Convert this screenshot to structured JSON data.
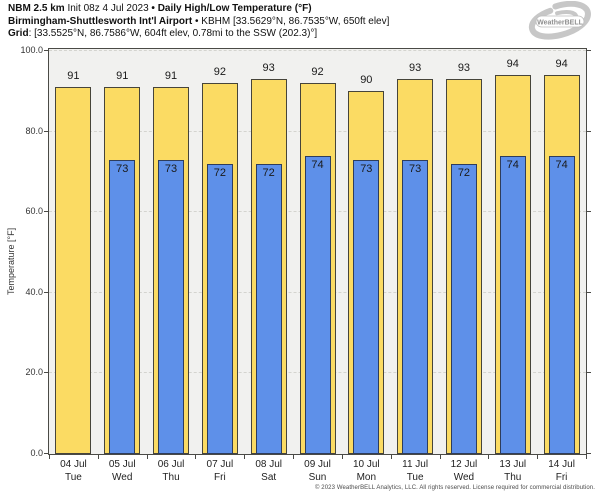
{
  "header": {
    "line1_model": "NBM 2.5 km",
    "line1_init": " Init 08z 4 Jul 2023 ",
    "line1_title": "• Daily High/Low Temperature (°F)",
    "line2_station": "Birmingham-Shuttlesworth Int'l Airport",
    "line2_meta": " • KBHM [33.5629°N, 86.7535°W, 650ft elev]",
    "line3_label": "Grid",
    "line3_meta": ": [33.5525°N, 86.7586°W, 604ft elev, 0.78mi to the SSW (202.3)°]"
  },
  "logo": {
    "text": "WeatherBELL"
  },
  "footer": {
    "copyright": "© 2023 WeatherBELL Analytics, LLC. All rights reserved. License required for commercial distribution."
  },
  "colors": {
    "high_fill": "#fbdb63",
    "high_border": "#46443a",
    "low_fill": "#5e90e9",
    "low_border": "#2e3d5c",
    "plot_bg": "#f1f1ef",
    "grid": "#d4d4cf",
    "axis": "#4a4a46"
  },
  "chart_data": {
    "type": "bar",
    "title": "Daily High/Low Temperature (°F)",
    "xlabel": "",
    "ylabel": "Temperature [°F]",
    "ylim": [
      0,
      100
    ],
    "yticks": [
      0,
      20,
      40,
      60,
      80,
      100
    ],
    "ytick_labels": [
      "0.0",
      "20.0",
      "40.0",
      "60.0",
      "80.0",
      "100.0"
    ],
    "grid": "horizontal-dashed",
    "legend": "none",
    "categories": [
      {
        "date": "04 Jul",
        "day": "Tue"
      },
      {
        "date": "05 Jul",
        "day": "Wed"
      },
      {
        "date": "06 Jul",
        "day": "Thu"
      },
      {
        "date": "07 Jul",
        "day": "Fri"
      },
      {
        "date": "08 Jul",
        "day": "Sat"
      },
      {
        "date": "09 Jul",
        "day": "Sun"
      },
      {
        "date": "10 Jul",
        "day": "Mon"
      },
      {
        "date": "11 Jul",
        "day": "Tue"
      },
      {
        "date": "12 Jul",
        "day": "Wed"
      },
      {
        "date": "13 Jul",
        "day": "Thu"
      },
      {
        "date": "14 Jul",
        "day": "Fri"
      }
    ],
    "series": [
      {
        "name": "Daily High",
        "values": [
          91,
          91,
          91,
          92,
          93,
          92,
          90,
          93,
          93,
          94,
          94
        ]
      },
      {
        "name": "Daily Low",
        "values": [
          null,
          73,
          73,
          72,
          72,
          74,
          73,
          73,
          72,
          74,
          74
        ]
      }
    ]
  }
}
